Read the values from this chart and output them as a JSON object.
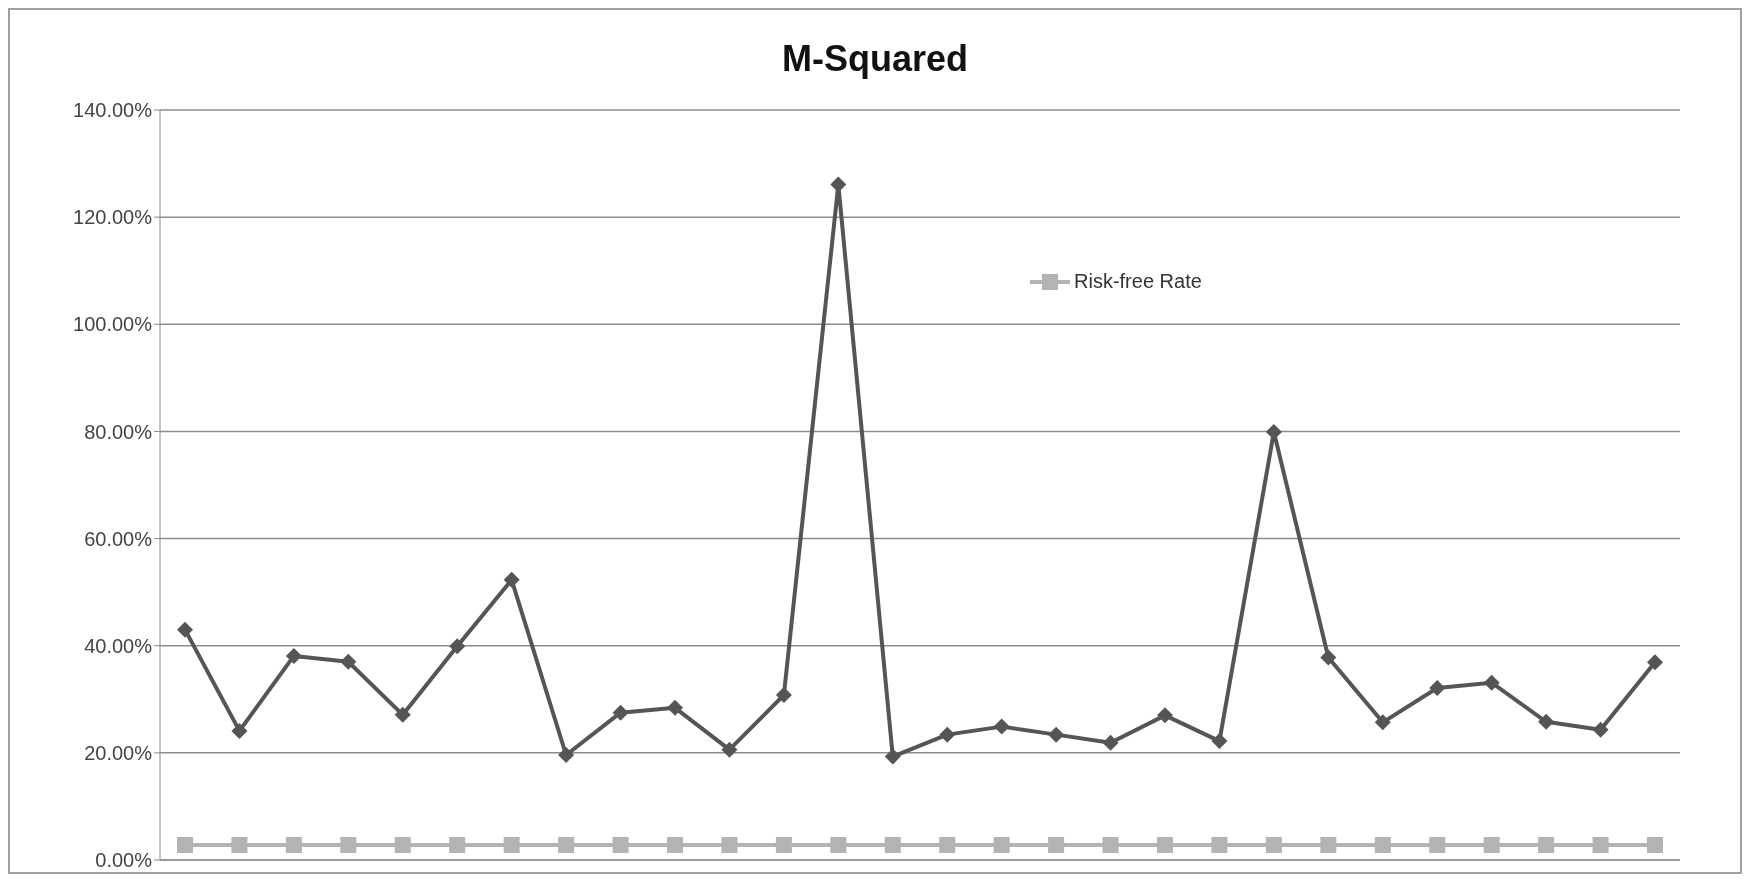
{
  "chart_data": {
    "type": "line",
    "title": "M-Squared",
    "categories": [
      null,
      null,
      null,
      null,
      null,
      null,
      null,
      null,
      null,
      null,
      null,
      null,
      null,
      null,
      null,
      null,
      null,
      null,
      null,
      null,
      null,
      null,
      null,
      null,
      null,
      null,
      null,
      null
    ],
    "series": [
      {
        "color": "#555555",
        "marker": "diamond",
        "values": [
          43.0,
          24.1,
          38.1,
          37.0,
          27.1,
          39.9,
          52.3,
          19.6,
          27.5,
          28.4,
          20.6,
          30.8,
          126.1,
          19.3,
          23.4,
          24.9,
          23.4,
          21.9,
          27.0,
          22.2,
          79.9,
          37.8,
          25.7,
          32.1,
          33.1,
          25.8,
          24.3,
          36.9
        ]
      },
      {
        "name": "Risk-free Rate",
        "color": "#b3b3b3",
        "marker": "square",
        "values": [
          2.8,
          2.8,
          2.8,
          2.8,
          2.8,
          2.8,
          2.8,
          2.8,
          2.8,
          2.8,
          2.8,
          2.8,
          2.8,
          2.8,
          2.8,
          2.8,
          2.8,
          2.8,
          2.8,
          2.8,
          2.8,
          2.8,
          2.8,
          2.8,
          2.8,
          2.8,
          2.8,
          2.8
        ]
      }
    ],
    "ylim": [
      0,
      140
    ],
    "yticks": [
      {
        "value": 0,
        "label": "0.00%"
      },
      {
        "value": 20,
        "label": "20.00%"
      },
      {
        "value": 40,
        "label": "40.00%"
      },
      {
        "value": 60,
        "label": "60.00%"
      },
      {
        "value": 80,
        "label": "80.00%"
      },
      {
        "value": 100,
        "label": "100.00%"
      },
      {
        "value": 120,
        "label": "120.00%"
      },
      {
        "value": 140,
        "label": "140.00%"
      }
    ],
    "grid": "y",
    "legend": "top right",
    "tick_labels": "y",
    "line_style": "solid"
  }
}
